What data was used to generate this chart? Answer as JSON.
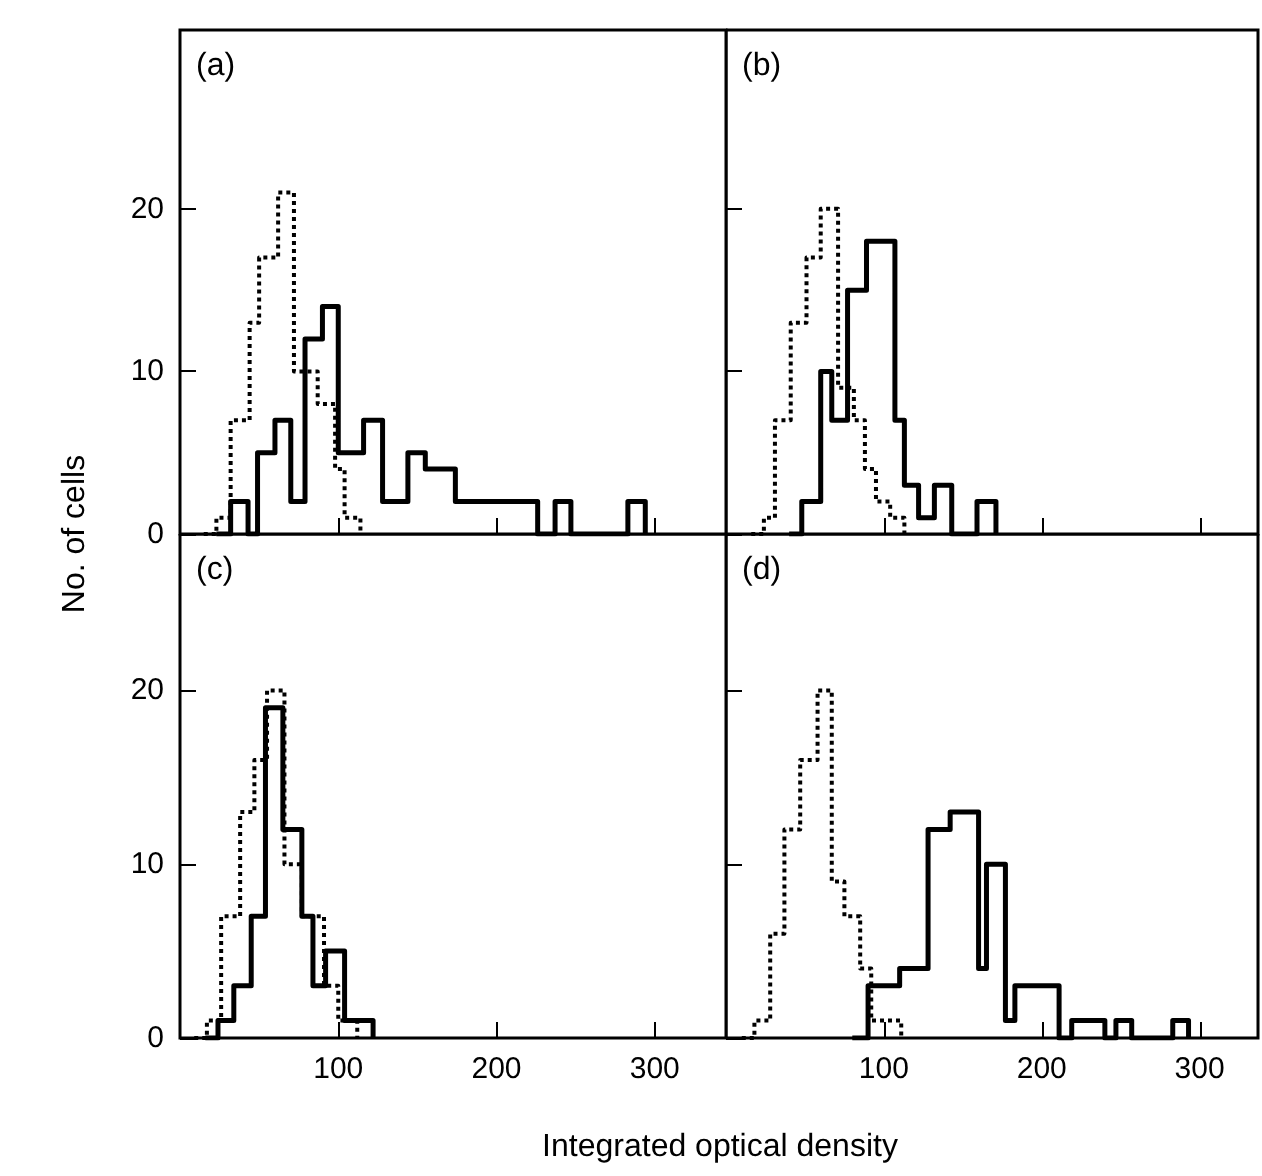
{
  "chart_data": [
    {
      "type": "step",
      "ylabel": "No. of cells",
      "annotations": [
        "(a)"
      ],
      "xlim": [
        0,
        345
      ],
      "ylim": [
        0,
        31
      ],
      "xticks": [
        100,
        200,
        300
      ],
      "yticks": [
        0,
        10,
        20
      ],
      "tick_labels": "y",
      "series": [
        {
          "color": "#000000",
          "line_style": "solid",
          "x": [
            23,
            32,
            43,
            49,
            60,
            70,
            79,
            90,
            100,
            116,
            128,
            144,
            155,
            174,
            226,
            237,
            247,
            283,
            294
          ],
          "values": [
            0,
            2,
            0,
            5,
            7,
            2,
            12,
            14,
            5,
            7,
            2,
            5,
            4,
            2,
            0,
            2,
            0,
            2,
            0
          ]
        },
        {
          "color": "#000000",
          "line_style": "dotted",
          "x": [
            15,
            23,
            32,
            44,
            50,
            62,
            72,
            87,
            98,
            104,
            114
          ],
          "values": [
            0,
            1,
            7,
            13,
            17,
            21,
            10,
            8,
            4,
            1,
            0
          ]
        }
      ]
    },
    {
      "type": "step",
      "annotations": [
        "(b)"
      ],
      "xlim": [
        0,
        337
      ],
      "ylim": [
        0,
        31
      ],
      "xticks": [
        100,
        200,
        300
      ],
      "yticks": [
        0,
        10,
        20
      ],
      "tick_labels": false,
      "series": [
        {
          "color": "#000000",
          "line_style": "solid",
          "x": [
            40,
            48,
            60,
            67,
            77,
            89,
            107,
            113,
            122,
            132,
            143,
            159,
            171
          ],
          "values": [
            0,
            2,
            10,
            7,
            15,
            18,
            7,
            3,
            1,
            3,
            0,
            2,
            0
          ]
        },
        {
          "color": "#000000",
          "line_style": "dotted",
          "x": [
            16,
            24,
            31,
            41,
            51,
            60,
            71,
            81,
            88,
            95,
            104,
            113
          ],
          "values": [
            0,
            1,
            7,
            13,
            17,
            20,
            9,
            7,
            4,
            2,
            1,
            0
          ]
        }
      ]
    },
    {
      "type": "step",
      "xlabel": "Integrated optical density",
      "annotations": [
        "(c)"
      ],
      "xlim": [
        0,
        345
      ],
      "ylim": [
        0,
        29
      ],
      "xticks": [
        100,
        200,
        300
      ],
      "yticks": [
        0,
        10,
        20
      ],
      "series": [
        {
          "color": "#000000",
          "line_style": "solid",
          "x": [
            16,
            24,
            34,
            45,
            54,
            65,
            77,
            84,
            92,
            104,
            122
          ],
          "values": [
            0,
            1,
            3,
            7,
            19,
            12,
            7,
            3,
            5,
            1,
            0
          ]
        },
        {
          "color": "#000000",
          "line_style": "dotted",
          "x": [
            9,
            17,
            26,
            38,
            47,
            55,
            66,
            77,
            91,
            100,
            112
          ],
          "values": [
            0,
            1,
            7,
            13,
            16,
            20,
            10,
            7,
            3,
            1,
            0
          ]
        }
      ]
    },
    {
      "type": "step",
      "annotations": [
        "(d)"
      ],
      "xlim": [
        0,
        337
      ],
      "ylim": [
        0,
        29
      ],
      "xticks": [
        100,
        200,
        300
      ],
      "yticks": [
        0,
        10,
        20
      ],
      "tick_labels": "x",
      "series": [
        {
          "color": "#000000",
          "line_style": "solid",
          "x": [
            80,
            90,
            110,
            128,
            142,
            160,
            165,
            177,
            183,
            211,
            219,
            240,
            247,
            257,
            283,
            293
          ],
          "values": [
            0,
            3,
            4,
            12,
            13,
            4,
            10,
            1,
            3,
            0,
            1,
            0,
            1,
            0,
            1,
            0
          ]
        },
        {
          "color": "#000000",
          "line_style": "dotted",
          "x": [
            10,
            18,
            28,
            37,
            47,
            58,
            67,
            75,
            85,
            92,
            100,
            111
          ],
          "values": [
            0,
            1,
            6,
            12,
            16,
            20,
            9,
            7,
            4,
            1,
            1,
            0
          ]
        }
      ]
    }
  ]
}
